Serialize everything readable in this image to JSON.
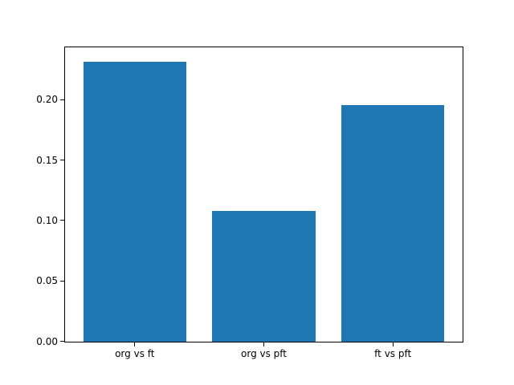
{
  "chart_data": {
    "type": "bar",
    "title": "",
    "xlabel": "",
    "ylabel": "",
    "categories": [
      "org vs ft",
      "org vs pft",
      "ft vs pft"
    ],
    "values": [
      0.232,
      0.108,
      0.196
    ],
    "ylim": [
      0,
      0.2437
    ],
    "xlim": [
      -0.54,
      2.54
    ],
    "yticks": [
      0.0,
      0.05,
      0.1,
      0.15,
      0.2
    ],
    "ytick_labels": [
      "0.00",
      "0.05",
      "0.10",
      "0.15",
      "0.20"
    ],
    "bar_color": "#1f77b4",
    "bar_width_data_units": 0.8,
    "grid": false,
    "legend": "none",
    "background": "#ffffff",
    "axis_color": "#000000"
  }
}
